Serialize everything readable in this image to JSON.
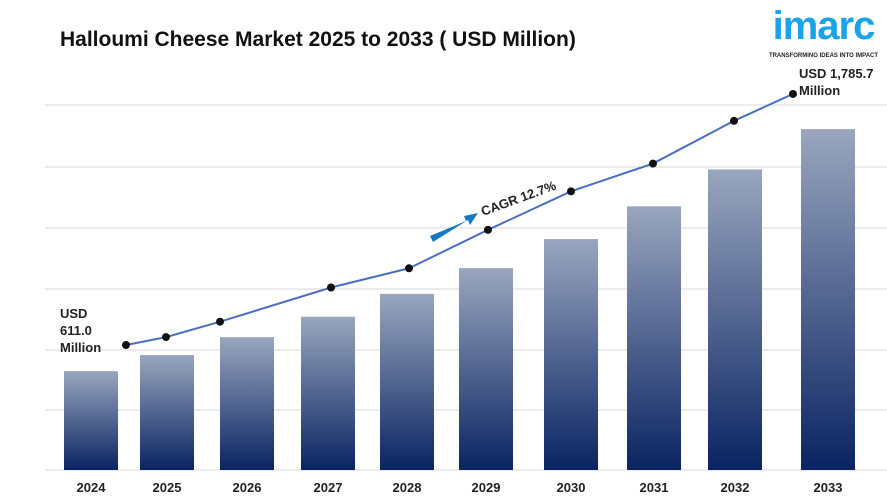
{
  "title": "Halloumi Cheese Market 2025 to 2033 ( USD Million)",
  "logo": {
    "word": "imarc",
    "tagline": "TRANSFORMING IDEAS INTO IMPACT"
  },
  "chart_data": {
    "type": "bar",
    "title": "Halloumi Cheese Market 2025 to 2033 ( USD Million)",
    "categories": [
      "2024",
      "2025",
      "2026",
      "2027",
      "2028",
      "2029",
      "2030",
      "2031",
      "2032",
      "2033"
    ],
    "values": [
      611.0,
      689,
      776,
      875,
      986,
      1111,
      1252,
      1411,
      1590,
      1785.7
    ],
    "line_values": [
      611.0,
      648,
      720,
      880,
      970,
      1150,
      1330,
      1460,
      1660,
      1785.7
    ],
    "start_label": [
      "USD",
      "611.0",
      "Million"
    ],
    "end_label": [
      "USD 1,785.7",
      "Million"
    ],
    "annotation": "CAGR 12.7%",
    "grid": true,
    "colors": {
      "bar_top": "#9aa6be",
      "bar_bottom": "#0a2462",
      "line": "#4a6fc1",
      "dot": "#111111",
      "arrow": "#1a78c2",
      "grid": "#d9d9d9"
    }
  }
}
